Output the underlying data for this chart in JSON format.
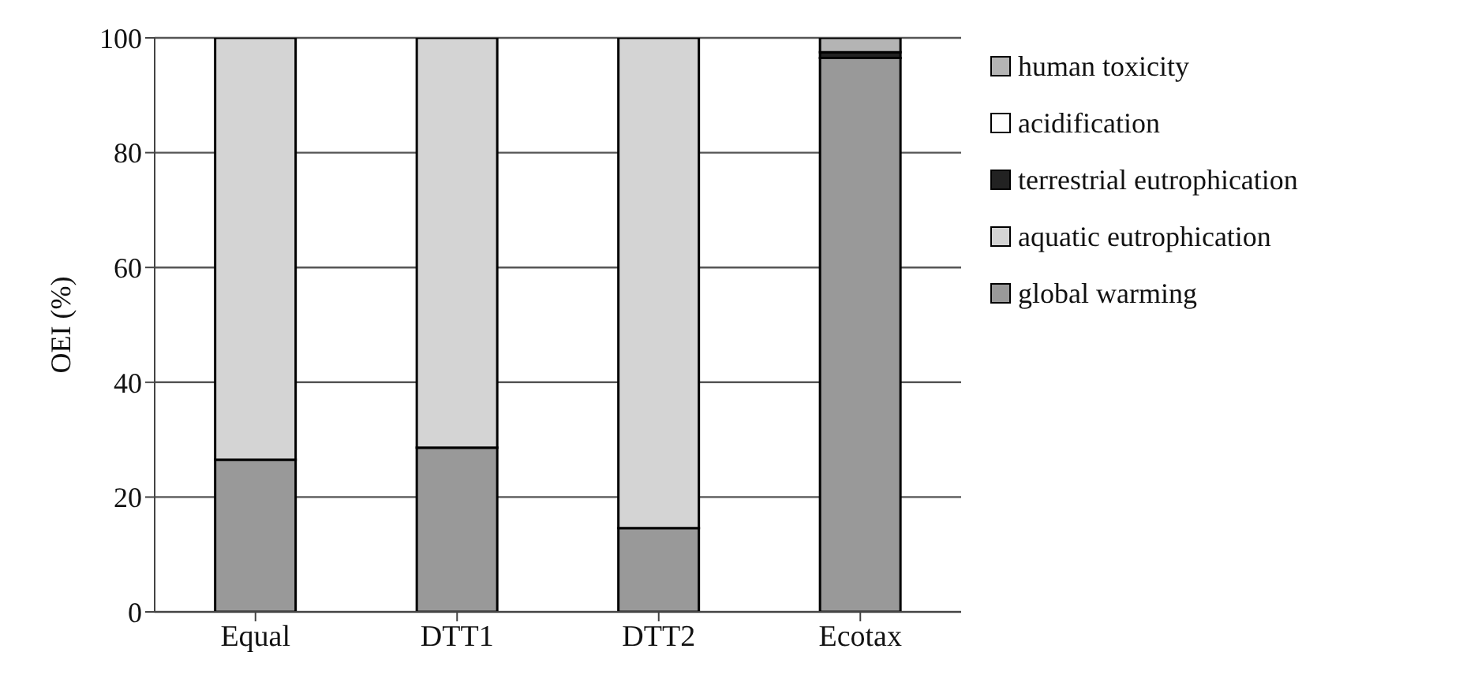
{
  "chart_data": {
    "type": "bar",
    "stacked": true,
    "ylabel": "OEI (%)",
    "categories": [
      "Equal",
      "DTT1",
      "DTT2",
      "Ecotax"
    ],
    "series": [
      {
        "name": "global warming",
        "color": "#999999",
        "values": [
          26.5,
          28.6,
          14.6,
          96.5
        ]
      },
      {
        "name": "aquatic eutrophication",
        "color": "#d4d4d4",
        "values": [
          73.5,
          71.4,
          85.4,
          0
        ]
      },
      {
        "name": "terrestrial eutrophication",
        "color": "#222222",
        "values": [
          0,
          0,
          0,
          1
        ]
      },
      {
        "name": "acidification",
        "color": "#ffffff",
        "values": [
          0,
          0,
          0,
          0
        ]
      },
      {
        "name": "human toxicity",
        "color": "#b4b4b4",
        "values": [
          0,
          0,
          0,
          2.5
        ]
      }
    ],
    "ylim": [
      0,
      100
    ],
    "yticks": [
      0,
      20,
      40,
      60,
      80,
      100
    ],
    "grid": "y",
    "legend": "right"
  }
}
